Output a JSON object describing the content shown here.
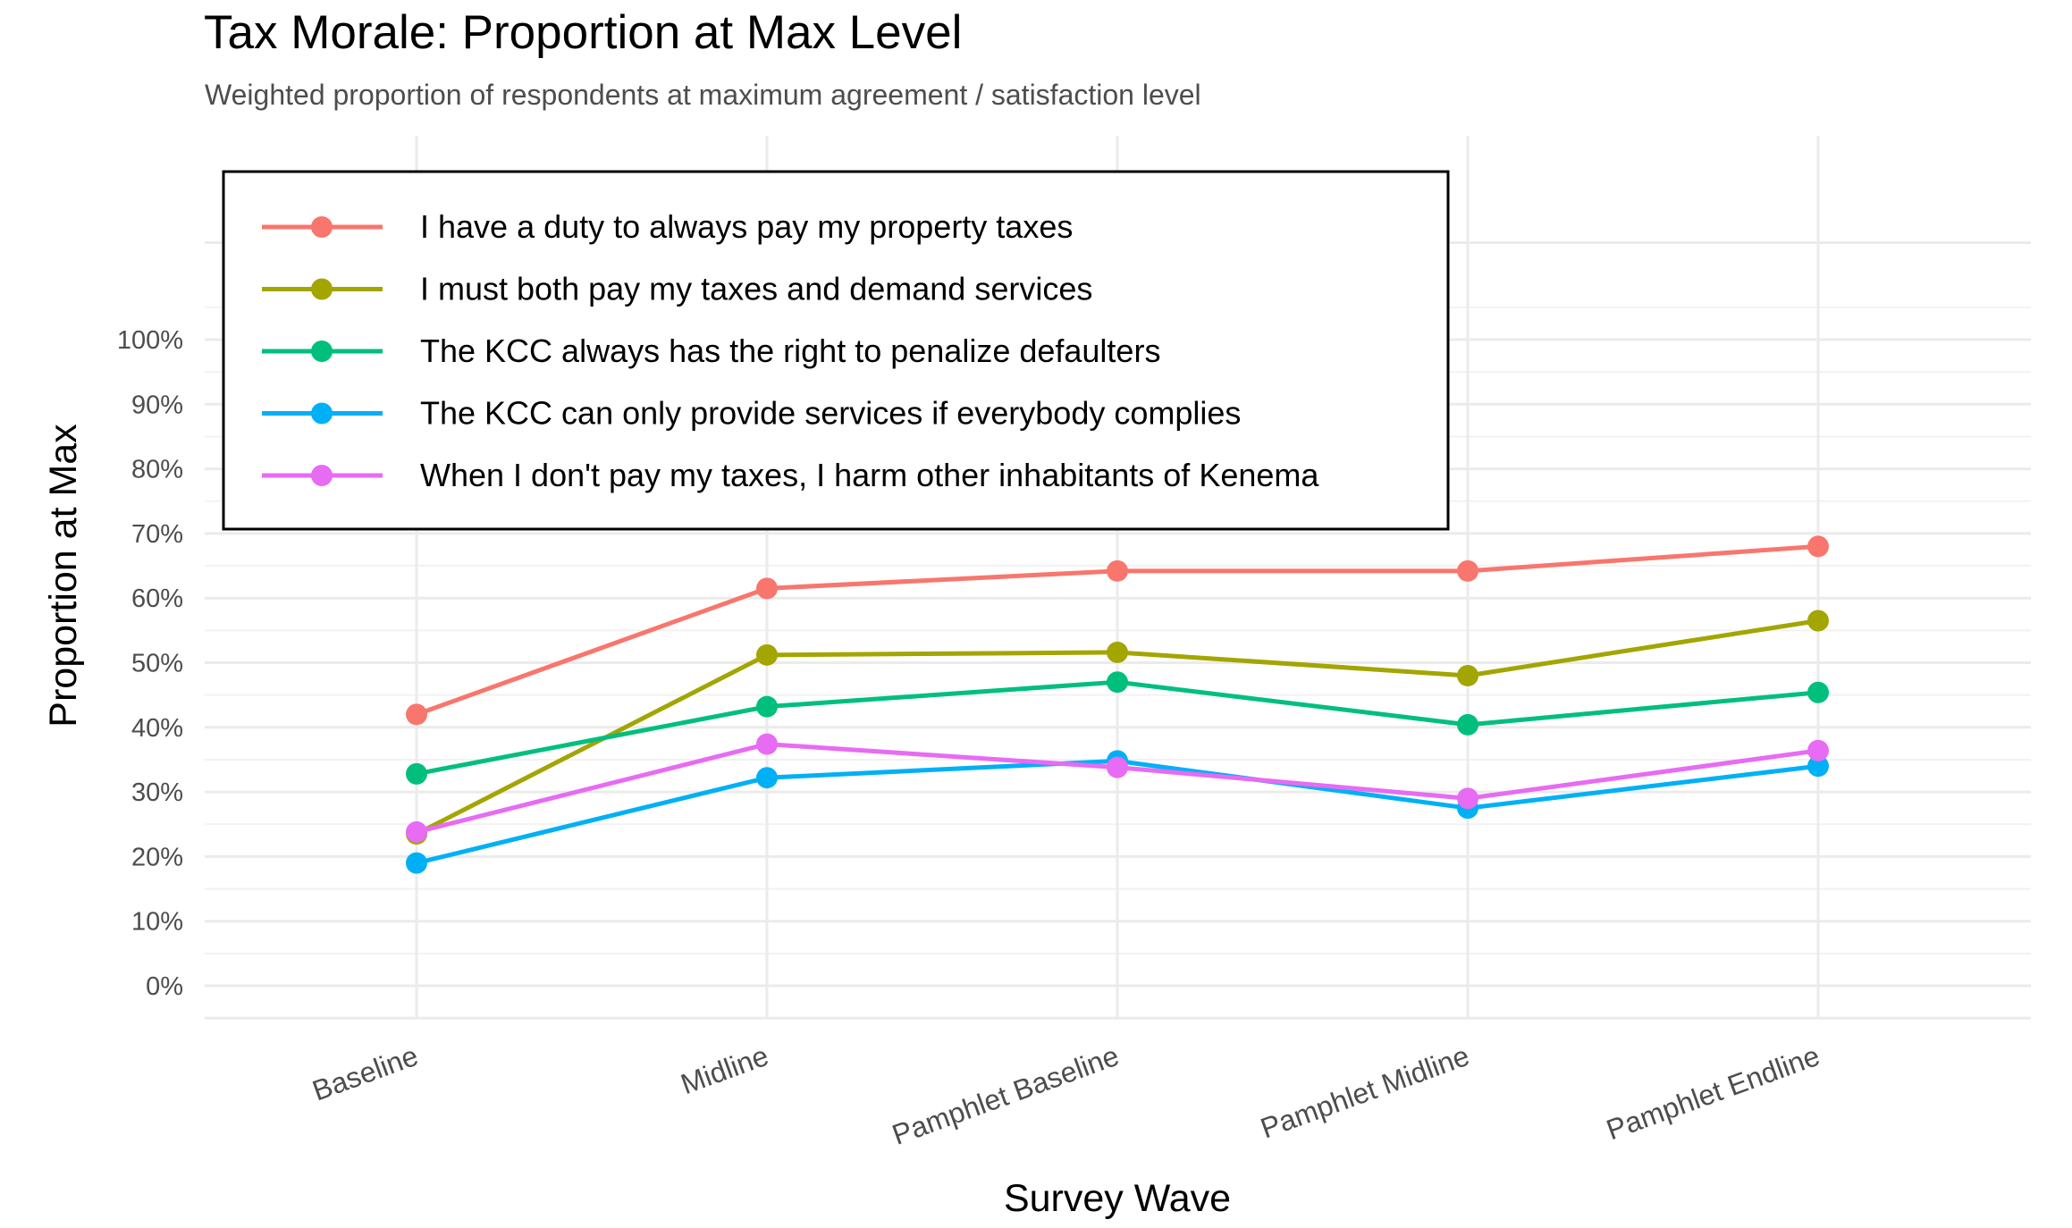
{
  "chart_data": {
    "type": "line",
    "title": "Tax Morale: Proportion at Max Level",
    "subtitle": "Weighted proportion of respondents at maximum agreement / satisfaction level",
    "xlabel": "Survey Wave",
    "ylabel": "Proportion at Max",
    "categories": [
      "Baseline",
      "Midline",
      "Pamphlet Baseline",
      "Pamphlet Midline",
      "Pamphlet Endline"
    ],
    "ylim": [
      0,
      1
    ],
    "yticks": [
      0,
      0.1,
      0.2,
      0.3,
      0.4,
      0.5,
      0.6,
      0.7,
      0.8,
      0.9,
      1.0
    ],
    "ytick_labels": [
      "0%",
      "10%",
      "20%",
      "30%",
      "40%",
      "50%",
      "60%",
      "70%",
      "80%",
      "90%",
      "100%"
    ],
    "grid": true,
    "legend_position": "top-left",
    "series": [
      {
        "name": "I have a duty to always pay my property taxes",
        "color": "#F8766D",
        "values": [
          0.42,
          0.615,
          0.642,
          0.642,
          0.68
        ]
      },
      {
        "name": "I must both pay my taxes and demand services",
        "color": "#A3A500",
        "values": [
          0.235,
          0.512,
          0.516,
          0.48,
          0.565
        ]
      },
      {
        "name": "The KCC always has the right to penalize defaulters",
        "color": "#00BF7D",
        "values": [
          0.328,
          0.432,
          0.47,
          0.404,
          0.454
        ]
      },
      {
        "name": "The KCC can only provide services if everybody complies",
        "color": "#00B0F6",
        "values": [
          0.19,
          0.322,
          0.348,
          0.275,
          0.34
        ]
      },
      {
        "name": "When I don't pay my taxes, I harm other inhabitants of Kenema",
        "color": "#E76BF3",
        "values": [
          0.238,
          0.374,
          0.338,
          0.29,
          0.364
        ]
      }
    ]
  }
}
